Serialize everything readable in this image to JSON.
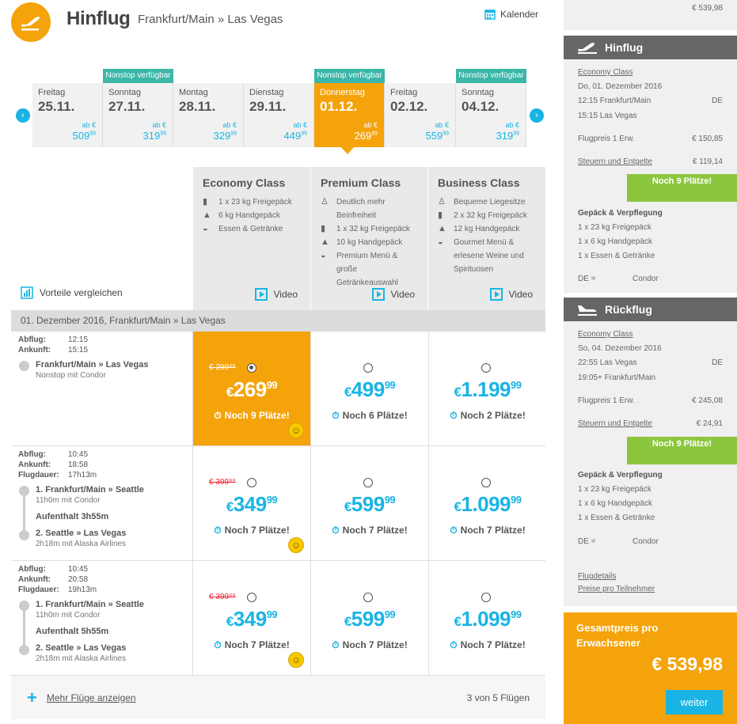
{
  "header": {
    "title": "Hinflug",
    "route": "Frankfurt/Main » Las Vegas",
    "calendar_label": "Kalender"
  },
  "nonstop_label": "Nonstop verfügbar",
  "dates": [
    {
      "day": "Freitag",
      "date": "25.11.",
      "ab": "ab €",
      "price": "509",
      "cents": "99"
    },
    {
      "day": "Sonntag",
      "date": "27.11.",
      "ab": "ab €",
      "price": "319",
      "cents": "99"
    },
    {
      "day": "Montag",
      "date": "28.11.",
      "ab": "ab €",
      "price": "329",
      "cents": "99"
    },
    {
      "day": "Dienstag",
      "date": "29.11.",
      "ab": "ab €",
      "price": "449",
      "cents": "99"
    },
    {
      "day": "Donnerstag",
      "date": "01.12.",
      "ab": "ab €",
      "price": "269",
      "cents": "99"
    },
    {
      "day": "Freitag",
      "date": "02.12.",
      "ab": "ab €",
      "price": "559",
      "cents": "99"
    },
    {
      "day": "Sonntag",
      "date": "04.12.",
      "ab": "ab €",
      "price": "319",
      "cents": "99"
    }
  ],
  "classes": [
    {
      "name": "Economy Class",
      "features": [
        {
          "icon": "luggage-icon",
          "text": "1 x 23 kg Freigepäck"
        },
        {
          "icon": "handbag-icon",
          "text": "6 kg Handgepäck"
        },
        {
          "icon": "meal-icon",
          "text": "Essen & Getränke"
        }
      ],
      "video": "Video"
    },
    {
      "name": "Premium Class",
      "features": [
        {
          "icon": "seat-icon",
          "text": "Deutlich mehr Beinfreiheit"
        },
        {
          "icon": "luggage-icon",
          "text": "1 x 32 kg Freigepäck"
        },
        {
          "icon": "handbag-icon",
          "text": "10 kg Handgepäck"
        },
        {
          "icon": "meal-icon",
          "text": "Premium Menü & große Getränkeauswahl"
        }
      ],
      "video": "Video"
    },
    {
      "name": "Business Class",
      "features": [
        {
          "icon": "seat-icon",
          "text": "Bequeme Liegesitze"
        },
        {
          "icon": "luggage-icon",
          "text": "2 x 32 kg Freigepäck"
        },
        {
          "icon": "handbag-icon",
          "text": "12 kg Handgepäck"
        },
        {
          "icon": "meal-icon",
          "text": "Gourmet Menü & erlesene Weine und Spirituosen"
        }
      ],
      "video": "Video"
    }
  ],
  "compare_label": "Vorteile vergleichen",
  "subheader": "01. Dezember 2016, Frankfurt/Main » Las Vegas",
  "labels": {
    "abflug": "Abflug:",
    "ankunft": "Ankunft:",
    "flugdauer": "Flugdauer:"
  },
  "flights": [
    {
      "abflug": "12:15",
      "ankunft": "15:15",
      "segments": [
        {
          "route": "Frankfurt/Main » Las Vegas",
          "sub": "Nonstop mit Condor"
        }
      ],
      "prices": [
        {
          "old": "€ 299⁹⁹",
          "cur": "€",
          "main": "269",
          "cents": "99",
          "seats": "Noch 9 Plätze!"
        },
        {
          "cur": "€",
          "main": "499",
          "cents": "99",
          "seats": "Noch 6 Plätze!"
        },
        {
          "cur": "€",
          "main": "1.199",
          "cents": "99",
          "seats": "Noch 2 Plätze!"
        }
      ]
    },
    {
      "abflug": "10:45",
      "ankunft": "18:58",
      "dauer": "17h13m",
      "segments": [
        {
          "route": "1. Frankfurt/Main » Seattle",
          "sub": "11h0m mit Condor"
        },
        {
          "route": "2. Seattle » Las Vegas",
          "sub": "2h18m mit Alaska Airlines"
        }
      ],
      "layover": "Aufenthalt 3h55m",
      "prices": [
        {
          "old": "€ 399⁹⁹",
          "cur": "€",
          "main": "349",
          "cents": "99",
          "seats": "Noch 7 Plätze!"
        },
        {
          "cur": "€",
          "main": "599",
          "cents": "99",
          "seats": "Noch 7 Plätze!"
        },
        {
          "cur": "€",
          "main": "1.099",
          "cents": "99",
          "seats": "Noch 7 Plätze!"
        }
      ]
    },
    {
      "abflug": "10:45",
      "ankunft": "20:58",
      "dauer": "19h13m",
      "segments": [
        {
          "route": "1. Frankfurt/Main » Seattle",
          "sub": "11h0m mit Condor"
        },
        {
          "route": "2. Seattle » Las Vegas",
          "sub": "2h18m mit Alaska Airlines"
        }
      ],
      "layover": "Aufenthalt 5h55m",
      "prices": [
        {
          "old": "€ 399⁹⁹",
          "cur": "€",
          "main": "349",
          "cents": "99",
          "seats": "Noch 7 Plätze!"
        },
        {
          "cur": "€",
          "main": "599",
          "cents": "99",
          "seats": "Noch 7 Plätze!"
        },
        {
          "cur": "€",
          "main": "1.099",
          "cents": "99",
          "seats": "Noch 7 Plätze!"
        }
      ]
    }
  ],
  "more_flights": "Mehr Flüge anzeigen",
  "flight_count": "3 von 5 Flügen",
  "sidebar": {
    "top_price": "€ 539,98",
    "hinflug": {
      "title": "Hinflug",
      "class": "Economy Class",
      "date": "Do, 01. Dezember 2016",
      "dep": "12:15 Frankfurt/Main",
      "dep_code": "DE",
      "arr": "15:15 Las Vegas",
      "fare_label": "Flugpreis 1 Erw.",
      "fare": "€ 150,85",
      "tax_label": "Steuern und Entgelte",
      "tax": "€ 119,14",
      "seats": "Noch 9 Plätze!",
      "bag_title": "Gepäck & Verpflegung",
      "bags": [
        "1 x 23 kg Freigepäck",
        "1 x 6 kg Handgepäck",
        "1 x Essen & Getränke"
      ],
      "carrier_code": "DE =",
      "carrier": "Condor"
    },
    "rueckflug": {
      "title": "Rückflug",
      "class": "Economy Class",
      "date": "So, 04. Dezember 2016",
      "dep": "22:55 Las Vegas",
      "dep_code": "DE",
      "arr": "19:05+ Frankfurt/Main",
      "fare_label": "Flugpreis 1 Erw.",
      "fare": "€ 245,08",
      "tax_label": "Steuern und Entgelte",
      "tax": "€ 24,91",
      "seats": "Noch 9 Plätze!",
      "bag_title": "Gepäck & Verpflegung",
      "bags": [
        "1 x 23 kg Freigepäck",
        "1 x 6 kg Handgepäck",
        "1 x Essen & Getränke"
      ],
      "carrier_code": "DE =",
      "carrier": "Condor"
    },
    "links": [
      "Flugdetails",
      "Preise pro Teilnehmer"
    ],
    "total_label": "Gesamtpreis pro Erwachsener",
    "total": "€ 539,98",
    "next_button": "weiter"
  },
  "colors": {
    "accent": "#f5a30a",
    "blue": "#19b4e4",
    "green": "#8cc63e",
    "teal": "#3bb6a8"
  }
}
